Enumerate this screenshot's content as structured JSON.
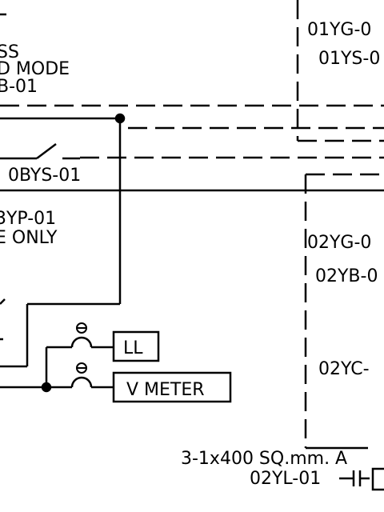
{
  "labels": {
    "mode_line1": "SS",
    "mode_line2": "D MODE",
    "mode_line3": "B-01",
    "bys_tag": "0BYS-01",
    "byp_tag": "3YP-01",
    "only_note": "E ONLY",
    "ll_box": "LL",
    "vmeter_box": "V METER",
    "tag_01yg": "01YG-0",
    "tag_01ys": "01YS-0",
    "tag_02yg": "02YG-0",
    "tag_02yb": "02YB-0",
    "tag_02yc": "02YC-",
    "cable_spec": "3-1x400 SQ.mm. A",
    "tag_02yl": "02YL-01"
  }
}
